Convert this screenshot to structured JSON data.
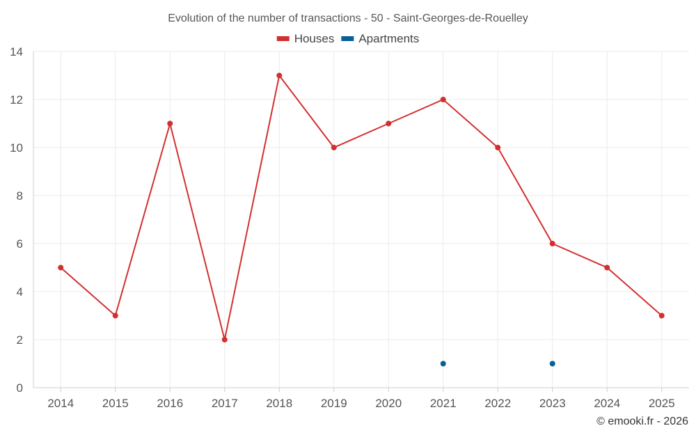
{
  "chart_data": {
    "type": "line",
    "title": "Evolution of the number of transactions - 50 - Saint-Georges-de-Rouelley",
    "categories": [
      "2014",
      "2015",
      "2016",
      "2017",
      "2018",
      "2019",
      "2020",
      "2021",
      "2022",
      "2023",
      "2024",
      "2025"
    ],
    "series": [
      {
        "name": "Houses",
        "color": "#d32f2f",
        "values": [
          5,
          3,
          11,
          2,
          13,
          10,
          11,
          12,
          10,
          6,
          5,
          3
        ]
      },
      {
        "name": "Apartments",
        "color": "#0a5f9a",
        "values": [
          null,
          null,
          null,
          null,
          null,
          null,
          null,
          1,
          null,
          1,
          null,
          null
        ]
      }
    ],
    "ylim": [
      0,
      14
    ],
    "yticks": [
      0,
      2,
      4,
      6,
      8,
      10,
      12,
      14
    ],
    "grid": true,
    "legend": "top-center",
    "xlabel": "",
    "ylabel": ""
  },
  "credit": "© emooki.fr - 2026"
}
